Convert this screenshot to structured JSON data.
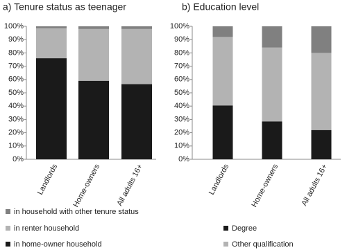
{
  "chart_data": [
    {
      "type": "bar",
      "stacked": true,
      "title": "a) Tenure status as teenager",
      "categories": [
        "Landlords",
        "Home-owners",
        "All adults 16+"
      ],
      "series": [
        {
          "name": "in home-owner household",
          "color": "#1a1a1a",
          "values": [
            76,
            59,
            56.5
          ]
        },
        {
          "name": "in renter household",
          "color": "#b3b3b3",
          "values": [
            22.5,
            39,
            41.5
          ]
        },
        {
          "name": "in household with other tenure status",
          "color": "#808080",
          "values": [
            1.5,
            2,
            2
          ]
        }
      ],
      "ylim": [
        0,
        100
      ],
      "yticks": [
        {
          "value": 0,
          "label": "0%"
        },
        {
          "value": 10,
          "label": "10%"
        },
        {
          "value": 20,
          "label": "20%"
        },
        {
          "value": 30,
          "label": "30%"
        },
        {
          "value": 40,
          "label": "40%"
        },
        {
          "value": 50,
          "label": "50%"
        },
        {
          "value": 60,
          "label": "60%"
        },
        {
          "value": 70,
          "label": "70%"
        },
        {
          "value": 80,
          "label": "80%"
        },
        {
          "value": 90,
          "label": "90%"
        },
        {
          "value": 100,
          "label": "100%"
        }
      ]
    },
    {
      "type": "bar",
      "stacked": true,
      "title": "b) Education level",
      "categories": [
        "Landlords",
        "Home-owners",
        "All adults 16+"
      ],
      "series": [
        {
          "name": "Degree",
          "color": "#1a1a1a",
          "values": [
            40.5,
            28.5,
            22
          ]
        },
        {
          "name": "Other qualification",
          "color": "#b3b3b3",
          "values": [
            51.5,
            55.5,
            58
          ]
        },
        {
          "color": "#808080",
          "values": [
            8,
            16,
            20
          ]
        }
      ],
      "ylim": [
        0,
        100
      ],
      "yticks": [
        {
          "value": 0,
          "label": "0%"
        },
        {
          "value": 10,
          "label": "10%"
        },
        {
          "value": 20,
          "label": "20%"
        },
        {
          "value": 30,
          "label": "30%"
        },
        {
          "value": 40,
          "label": "40%"
        },
        {
          "value": 50,
          "label": "50%"
        },
        {
          "value": 60,
          "label": "60%"
        },
        {
          "value": 70,
          "label": "70%"
        },
        {
          "value": 80,
          "label": "80%"
        },
        {
          "value": 90,
          "label": "90%"
        },
        {
          "value": 100,
          "label": "100%"
        }
      ]
    }
  ]
}
